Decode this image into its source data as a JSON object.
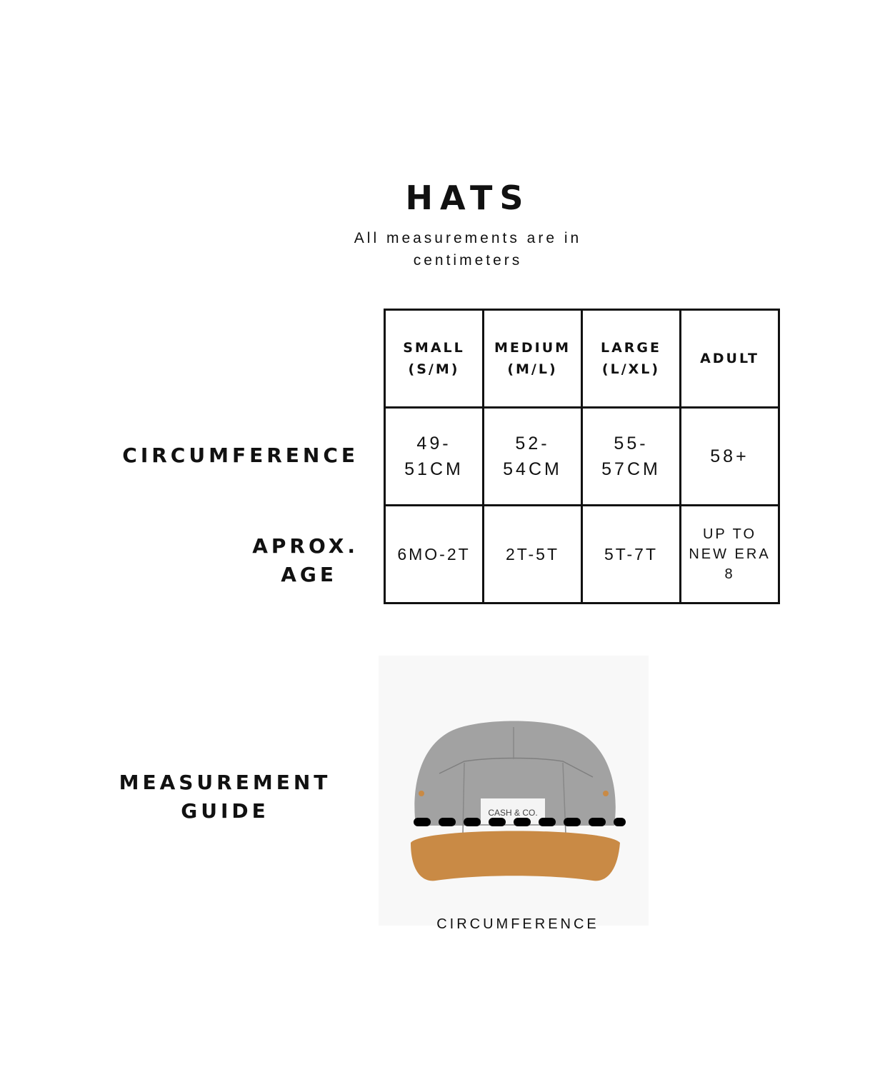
{
  "title": "HATS",
  "subtitle": [
    "All measurements are in",
    "centimeters"
  ],
  "row_labels": {
    "circumference": "CIRCUMFERENCE",
    "age": [
      "APROX.",
      "AGE"
    ],
    "guide": [
      "MEASUREMENT",
      "GUIDE"
    ]
  },
  "table": {
    "headers": [
      [
        "SMALL",
        "(S/M)"
      ],
      [
        "MEDIUM",
        "(M/L)"
      ],
      [
        "LARGE",
        "(L/XL)"
      ],
      [
        "ADULT"
      ]
    ],
    "circumference": [
      [
        "49-",
        "51CM"
      ],
      [
        "52-",
        "54CM"
      ],
      [
        "55-",
        "57CM"
      ],
      [
        "58+"
      ]
    ],
    "age": [
      [
        "6MO-2T"
      ],
      [
        "2T-5T"
      ],
      [
        "5T-7T"
      ],
      [
        "UP TO",
        "NEW ERA",
        "8"
      ]
    ]
  },
  "image": {
    "label_text": "CASH & CO.",
    "caption": "CIRCUMFERENCE",
    "colors": {
      "felt": "#9e9e9e",
      "brim": "#c98a45"
    }
  }
}
